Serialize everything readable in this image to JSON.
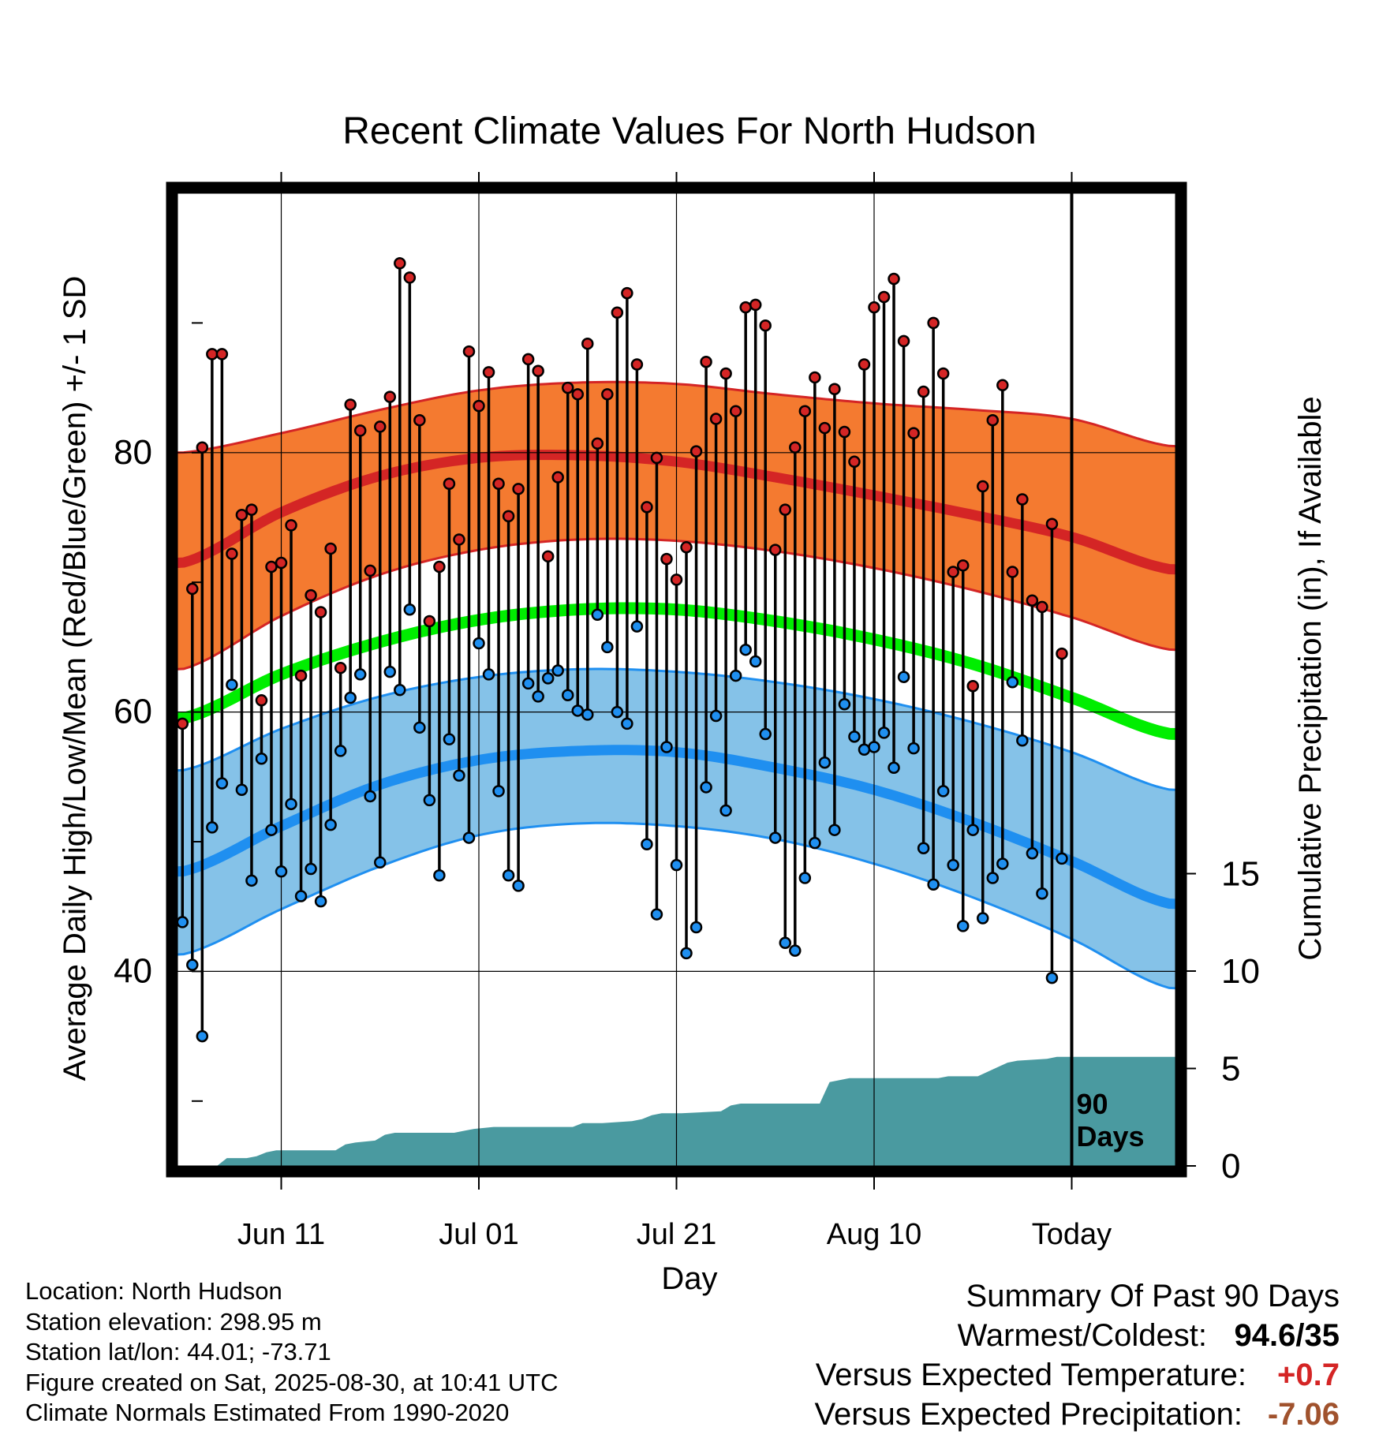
{
  "chart_data": {
    "type": "line",
    "title": "Recent Climate Values For North Hudson",
    "xlabel": "Day",
    "ylabel": "Average Daily High/Low/Mean (Red/Blue/Green) +/- 1 SD",
    "y2label": "Cumulative Precipitation (in), If Available",
    "x_ticks": [
      "Jun 11",
      "Jul 01",
      "Jul 21",
      "Aug 10",
      "Today"
    ],
    "today_marker_label": [
      "90",
      "Days"
    ],
    "y_ticks": [
      "40",
      "60",
      "80"
    ],
    "y2_ticks": [
      "0",
      "5",
      "10",
      "15"
    ],
    "ylim": [
      25,
      100
    ],
    "y2lim": [
      0,
      15
    ],
    "grid": true,
    "colors": {
      "high_band": "#f47a30",
      "high_line": "#d42525",
      "low_band": "#85c2e8",
      "low_line": "#1f8ff0",
      "mean_line": "#00ee00",
      "precip": "#4a9aa0",
      "high_dot": "#d42525",
      "low_dot": "#1f8ff0"
    },
    "normals": {
      "day": [
        0,
        10,
        20,
        30,
        40,
        50,
        60,
        70,
        80,
        90,
        100
      ],
      "high_upper": [
        80,
        81.5,
        83.3,
        84.8,
        85.4,
        85.3,
        84.5,
        83.8,
        83.3,
        82.6,
        80.5
      ],
      "high_mean": [
        71.5,
        75.4,
        78.2,
        79.6,
        79.8,
        79.3,
        78.1,
        76.7,
        75.2,
        73.5,
        71.0
      ],
      "high_lower": [
        63.3,
        67.4,
        70.6,
        72.5,
        73.3,
        73.2,
        72.4,
        71.1,
        69.4,
        67.3,
        64.8
      ],
      "mean": [
        59.5,
        62.9,
        65.4,
        67.1,
        67.9,
        67.9,
        67.0,
        65.6,
        63.7,
        61.1,
        58.3
      ],
      "low_upper": [
        55.5,
        58.7,
        61.2,
        62.7,
        63.3,
        63.1,
        62.3,
        61.0,
        59.2,
        56.9,
        54.0
      ],
      "low_mean": [
        47.7,
        51.2,
        54.4,
        56.3,
        57.0,
        56.9,
        55.7,
        54.0,
        51.5,
        48.5,
        45.2
      ],
      "low_lower": [
        41.3,
        44.8,
        48.1,
        50.5,
        51.4,
        51.2,
        50.2,
        48.3,
        45.7,
        42.5,
        38.7
      ]
    },
    "series": [
      {
        "name": "High",
        "day": [
          0,
          1,
          2,
          3,
          4,
          5,
          6,
          7,
          8,
          9,
          10,
          11,
          12,
          13,
          14,
          15,
          16,
          17,
          18,
          19,
          20,
          21,
          22,
          23,
          24,
          25,
          26,
          27,
          28,
          29,
          30,
          31,
          32,
          33,
          34,
          35,
          36,
          37,
          38,
          39,
          40,
          41,
          42,
          43,
          44,
          45,
          46,
          47,
          48,
          49,
          50,
          51,
          52,
          53,
          54,
          55,
          56,
          57,
          58,
          59,
          60,
          61,
          62,
          63,
          64,
          65,
          66,
          67,
          68,
          69,
          70,
          71,
          72,
          73,
          74,
          75,
          76,
          77,
          78,
          79,
          80,
          81,
          82,
          83,
          84,
          85,
          86,
          87,
          88,
          89
        ],
        "values": [
          59.1,
          69.5,
          80.4,
          87.6,
          87.6,
          72.2,
          75.2,
          75.6,
          60.9,
          71.2,
          71.5,
          74.4,
          62.8,
          69.0,
          67.7,
          72.6,
          63.4,
          83.7,
          81.7,
          70.9,
          82.0,
          84.3,
          94.6,
          93.5,
          82.5,
          67.0,
          71.2,
          77.6,
          73.3,
          87.8,
          83.6,
          86.2,
          77.6,
          75.1,
          77.2,
          87.2,
          86.3,
          72.0,
          78.1,
          85.0,
          84.5,
          88.4,
          80.7,
          84.5,
          90.8,
          92.3,
          86.8,
          75.8,
          79.6,
          71.8,
          70.2,
          72.7,
          80.1,
          87.0,
          82.6,
          86.1,
          83.2,
          91.2,
          91.4,
          89.8,
          72.5,
          75.6,
          80.4,
          83.2,
          85.8,
          81.9,
          84.9,
          81.6,
          79.3,
          86.8,
          91.2,
          92.0,
          93.4,
          88.6,
          81.5,
          84.7,
          90.0,
          86.1,
          70.8,
          71.3,
          62.0,
          77.4,
          82.5,
          85.2,
          70.8,
          76.4,
          68.6,
          68.1,
          74.5,
          64.5
        ]
      },
      {
        "name": "Low",
        "day": [
          0,
          1,
          2,
          3,
          4,
          5,
          6,
          7,
          8,
          9,
          10,
          11,
          12,
          13,
          14,
          15,
          16,
          17,
          18,
          19,
          20,
          21,
          22,
          23,
          24,
          25,
          26,
          27,
          28,
          29,
          30,
          31,
          32,
          33,
          34,
          35,
          36,
          37,
          38,
          39,
          40,
          41,
          42,
          43,
          44,
          45,
          46,
          47,
          48,
          49,
          50,
          51,
          52,
          53,
          54,
          55,
          56,
          57,
          58,
          59,
          60,
          61,
          62,
          63,
          64,
          65,
          66,
          67,
          68,
          69,
          70,
          71,
          72,
          73,
          74,
          75,
          76,
          77,
          78,
          79,
          80,
          81,
          82,
          83,
          84,
          85,
          86,
          87,
          88,
          89
        ],
        "values": [
          43.8,
          40.5,
          35.0,
          51.1,
          54.5,
          62.1,
          54.0,
          47.0,
          56.4,
          50.9,
          47.7,
          52.9,
          45.8,
          47.9,
          45.4,
          51.3,
          57.0,
          61.1,
          62.9,
          53.5,
          48.4,
          63.1,
          61.7,
          67.9,
          58.8,
          53.2,
          47.4,
          57.9,
          55.1,
          50.3,
          65.3,
          62.9,
          53.9,
          47.4,
          46.6,
          62.2,
          61.2,
          62.6,
          63.2,
          61.3,
          60.1,
          59.8,
          67.5,
          65.0,
          60.0,
          59.1,
          66.6,
          49.8,
          44.4,
          57.3,
          48.2,
          41.4,
          43.4,
          54.2,
          59.7,
          52.4,
          62.8,
          64.8,
          63.9,
          58.3,
          50.3,
          42.2,
          41.6,
          47.2,
          49.9,
          56.1,
          50.9,
          60.6,
          58.1,
          57.1,
          57.3,
          58.4,
          55.7,
          62.7,
          57.2,
          49.5,
          46.7,
          53.9,
          48.2,
          43.5,
          50.9,
          44.1,
          47.2,
          48.3,
          62.3,
          57.8,
          49.1,
          46.0,
          39.5,
          48.7
        ]
      },
      {
        "name": "Cumulative Precipitation",
        "day": [
          0,
          4,
          5,
          7,
          8,
          9,
          10,
          16,
          17,
          18,
          20,
          21,
          22,
          28,
          29,
          30,
          32,
          40,
          41,
          43,
          46,
          47,
          48,
          49,
          51,
          55,
          56,
          57,
          65,
          66,
          67,
          68,
          72,
          77,
          78,
          81,
          84,
          85,
          88,
          89,
          100
        ],
        "values": [
          0,
          0,
          0.4,
          0.4,
          0.5,
          0.7,
          0.8,
          0.8,
          1.1,
          1.2,
          1.3,
          1.6,
          1.7,
          1.7,
          1.8,
          1.9,
          2.0,
          2.0,
          2.2,
          2.2,
          2.3,
          2.4,
          2.6,
          2.7,
          2.7,
          2.8,
          3.1,
          3.2,
          3.2,
          4.3,
          4.4,
          4.5,
          4.5,
          4.5,
          4.6,
          4.6,
          5.3,
          5.4,
          5.5,
          5.6,
          5.6
        ]
      }
    ]
  },
  "footer": {
    "location": "Location: North Hudson",
    "elevation": "Station elevation: 298.95 m",
    "latlon": "Station lat/lon: 44.01; -73.71",
    "created": "Figure created on Sat, 2025-08-30, at 10:41 UTC",
    "normals": "Climate Normals Estimated From 1990-2020"
  },
  "summary": {
    "title": "Summary Of Past 90 Days",
    "warmest_coldest_label": "Warmest/Coldest:",
    "warmest_coldest_value": "94.6/35",
    "temp_label": "Versus Expected Temperature:",
    "temp_value": "+0.7",
    "temp_color": "#d42525",
    "precip_label": "Versus Expected Precipitation:",
    "precip_value": "-7.06",
    "precip_color": "#a0522d"
  }
}
